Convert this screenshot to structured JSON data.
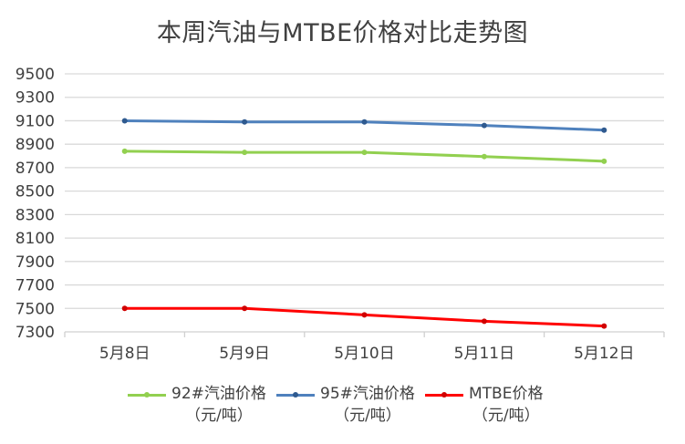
{
  "chart_data": {
    "type": "line",
    "title": "本周汽油与MTBE价格对比走势图",
    "xlabel": "",
    "ylabel": "",
    "categories": [
      "5月8日",
      "5月9日",
      "5月10日",
      "5月11日",
      "5月12日"
    ],
    "yticks": [
      9500,
      9300,
      9100,
      8900,
      8700,
      8500,
      8300,
      8100,
      7900,
      7700,
      7500,
      7300
    ],
    "ylim": [
      7300,
      9500
    ],
    "grid": true,
    "legend_position": "bottom",
    "series": [
      {
        "name": "92#汽油价格（元/吨）",
        "label_line1": "92#汽油价格",
        "label_line2": "（元/吨）",
        "color": "#92d050",
        "values": [
          8840,
          8830,
          8830,
          8795,
          8755
        ]
      },
      {
        "name": "95#汽油价格（元/吨）",
        "label_line1": "95#汽油价格",
        "label_line2": "（元/吨）",
        "color": "#4f81bd",
        "values": [
          9100,
          9090,
          9090,
          9060,
          9020
        ]
      },
      {
        "name": "MTBE价格（元/吨）",
        "label_line1": "MTBE价格",
        "label_line2": "（元/吨）",
        "color": "#ff0000",
        "values": [
          7500,
          7500,
          7445,
          7390,
          7350
        ]
      }
    ]
  }
}
